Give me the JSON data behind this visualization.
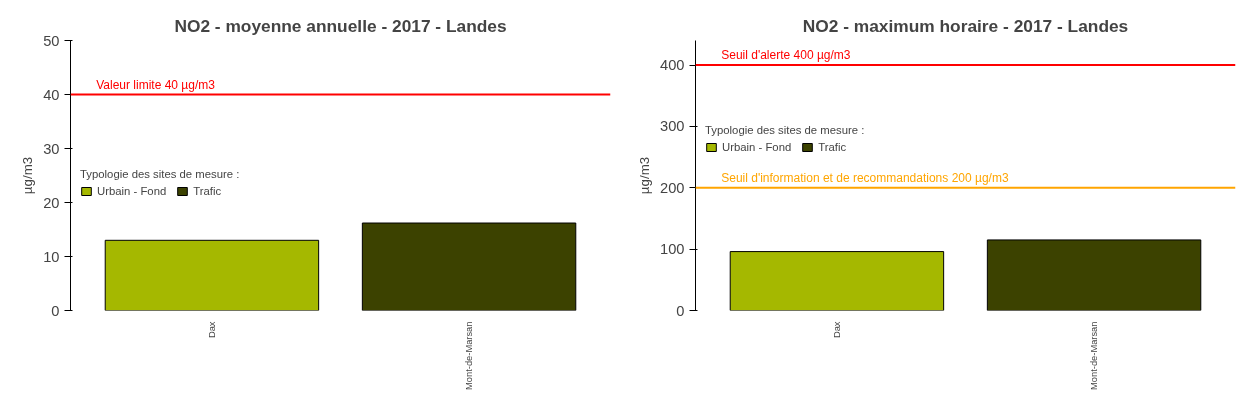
{
  "chart_data": [
    {
      "type": "bar",
      "title": "NO2 - moyenne annuelle - 2017 - Landes",
      "ylabel": "µg/m3",
      "categories": [
        "Dax",
        "Mont-de-Marsan"
      ],
      "series": [
        {
          "name": "Urbain - Fond",
          "color": "#a5b800",
          "values": [
            13.0,
            null
          ]
        },
        {
          "name": "Trafic",
          "color": "#3c4200",
          "values": [
            null,
            16.2
          ]
        }
      ],
      "legend_title": "Typologie des sites de mesure :",
      "legend": "left",
      "ylim": [
        0,
        50
      ],
      "yticks": [
        0,
        10,
        20,
        30,
        40,
        50
      ],
      "grid": false,
      "ref_lines": [
        {
          "axis": "y",
          "value": 40,
          "label": "Valeur limite 40 µg/m3",
          "color": "#ff0000"
        }
      ]
    },
    {
      "type": "bar",
      "title": "NO2 - maximum horaire - 2017 - Landes",
      "ylabel": "µg/m3",
      "categories": [
        "Dax",
        "Mont-de-Marsan"
      ],
      "series": [
        {
          "name": "Urbain - Fond",
          "color": "#a5b800",
          "values": [
            96,
            null
          ]
        },
        {
          "name": "Trafic",
          "color": "#3c4200",
          "values": [
            null,
            115
          ]
        }
      ],
      "legend_title": "Typologie des sites de mesure :",
      "legend": "top left",
      "ylim": [
        0,
        440
      ],
      "yticks": [
        0,
        100,
        200,
        300,
        400
      ],
      "grid": false,
      "ref_lines": [
        {
          "axis": "y",
          "value": 400,
          "label": "Seuil d'alerte 400 µg/m3",
          "color": "#ff0000"
        },
        {
          "axis": "y",
          "value": 200,
          "label": "Seuil d'information et de recommandations 200 µg/m3",
          "color": "#ffa500"
        }
      ]
    }
  ]
}
